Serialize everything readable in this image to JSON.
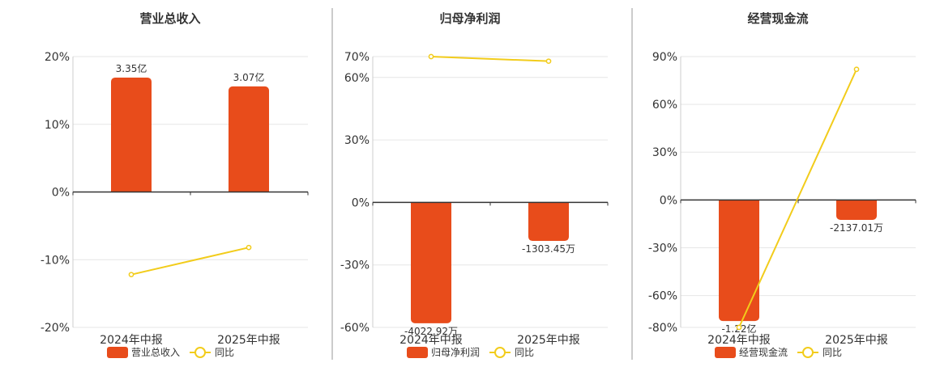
{
  "colors": {
    "bar": "#e84c1b",
    "line": "#f2cc1b",
    "grid": "#e6e6e6",
    "axis": "#333333",
    "text": "#333333",
    "divider": "#999999"
  },
  "legend_line_label": "同比",
  "chart_data": [
    {
      "type": "bar",
      "title": "营业总收入",
      "categories": [
        "2024年中报",
        "2025年中报"
      ],
      "bar_values": [
        16.9,
        15.6
      ],
      "bar_labels": [
        "3.35亿",
        "3.07亿"
      ],
      "line_values": [
        -12.2,
        -8.2
      ],
      "yticks": [
        20,
        10,
        0,
        -10,
        -20
      ],
      "ytick_labels": [
        "20%",
        "10%",
        "0%",
        "-10%",
        "-20%"
      ],
      "ylim": [
        -20,
        20
      ],
      "legend": [
        "营业总收入",
        "同比"
      ],
      "grid": true
    },
    {
      "type": "bar",
      "title": "归母净利润",
      "categories": [
        "2024年中报",
        "2025年中报"
      ],
      "bar_values": [
        -58,
        -18.5
      ],
      "bar_labels": [
        "-4022.92万",
        "-1303.45万"
      ],
      "line_values": [
        70,
        67.8
      ],
      "yticks": [
        70,
        60,
        30,
        0,
        -30,
        -60
      ],
      "ytick_labels": [
        "70%",
        "60%",
        "30%",
        "0%",
        "-30%",
        "-60%"
      ],
      "ylim": [
        -60,
        70
      ],
      "legend": [
        "归母净利润",
        "同比"
      ],
      "grid": true
    },
    {
      "type": "bar",
      "title": "经营现金流",
      "categories": [
        "2024年中报",
        "2025年中报"
      ],
      "bar_values": [
        -76,
        -12.5
      ],
      "bar_labels": [
        "-1.22亿",
        "-2137.01万"
      ],
      "line_values": [
        -80,
        82
      ],
      "yticks": [
        90,
        60,
        30,
        0,
        -30,
        -60,
        -80
      ],
      "ytick_labels": [
        "90%",
        "60%",
        "30%",
        "0%",
        "-30%",
        "-60%",
        "-80%"
      ],
      "ylim": [
        -80,
        90
      ],
      "legend": [
        "经营现金流",
        "同比"
      ],
      "grid": true
    }
  ]
}
